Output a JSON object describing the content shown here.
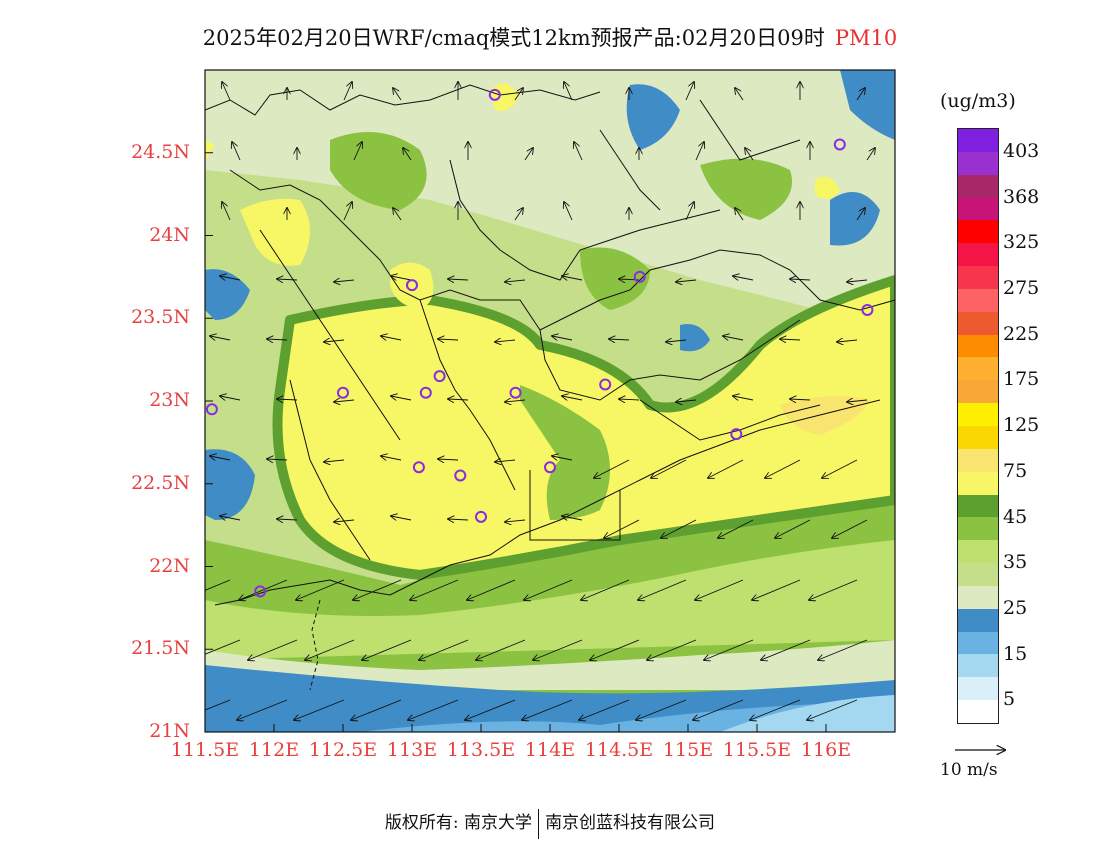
{
  "title": "2025年02月20日WRF/cmaq模式12km预报产品:02月20日09时",
  "pollutant": "PM10",
  "unit": "(ug/m3)",
  "y_ticks": [
    "24.5N",
    "24N",
    "23.5N",
    "23N",
    "22.5N",
    "22N",
    "21.5N",
    "21N"
  ],
  "x_ticks": [
    "111.5E",
    "112E",
    "112.5E",
    "113E",
    "113.5E",
    "114E",
    "114.5E",
    "115E",
    "115.5E",
    "116E"
  ],
  "legend": {
    "colors": [
      "#7f1fe0",
      "#9a30d0",
      "#a8286a",
      "#c81478",
      "#fe0000",
      "#f51446",
      "#f7364e",
      "#fe6363",
      "#ed5a30",
      "#fe8c00",
      "#ffb030",
      "#f9a838",
      "#feee00",
      "#fad700",
      "#f8e46e",
      "#f7f766",
      "#5ea030",
      "#8bc241",
      "#bde06e",
      "#c5de8a",
      "#dde9c0",
      "#3f8cc7",
      "#6ab2e1",
      "#a3d8f0",
      "#daf0f8",
      "#ffffff"
    ],
    "labels": [
      "403",
      "368",
      "325",
      "275",
      "225",
      "175",
      "125",
      "75",
      "45",
      "35",
      "25",
      "15",
      "5"
    ]
  },
  "wind_reference": "10 m/s",
  "footer": {
    "left": "版权所有: 南京大学",
    "right": "南京创蓝科技有限公司"
  },
  "map": {
    "lon_range": [
      111.5,
      116.5
    ],
    "lat_range": [
      21,
      25
    ],
    "palette": {
      "very_low": "#3f8cc7",
      "low": "#6ab2e1",
      "lowest": "#a3d8f0",
      "pale": "#dde9c0",
      "green_light": "#c5de8a",
      "green": "#bde06e",
      "green_mid": "#8bc241",
      "green_dark": "#5ea030",
      "yellow": "#f7f766",
      "yellow_mid": "#f8e46e",
      "marker": "#8a2be2"
    },
    "stations": [
      {
        "lon": 113.6,
        "lat": 24.85
      },
      {
        "lon": 116.1,
        "lat": 24.55
      },
      {
        "lon": 114.65,
        "lat": 23.75
      },
      {
        "lon": 113.0,
        "lat": 23.7
      },
      {
        "lon": 116.3,
        "lat": 23.55
      },
      {
        "lon": 113.2,
        "lat": 23.15
      },
      {
        "lon": 112.5,
        "lat": 23.05
      },
      {
        "lon": 113.1,
        "lat": 23.05
      },
      {
        "lon": 113.75,
        "lat": 23.05
      },
      {
        "lon": 114.4,
        "lat": 23.1
      },
      {
        "lon": 111.55,
        "lat": 22.95
      },
      {
        "lon": 115.35,
        "lat": 22.8
      },
      {
        "lon": 113.05,
        "lat": 22.6
      },
      {
        "lon": 114.0,
        "lat": 22.6
      },
      {
        "lon": 113.35,
        "lat": 22.55
      },
      {
        "lon": 113.5,
        "lat": 22.3
      },
      {
        "lon": 111.9,
        "lat": 21.85
      }
    ]
  }
}
